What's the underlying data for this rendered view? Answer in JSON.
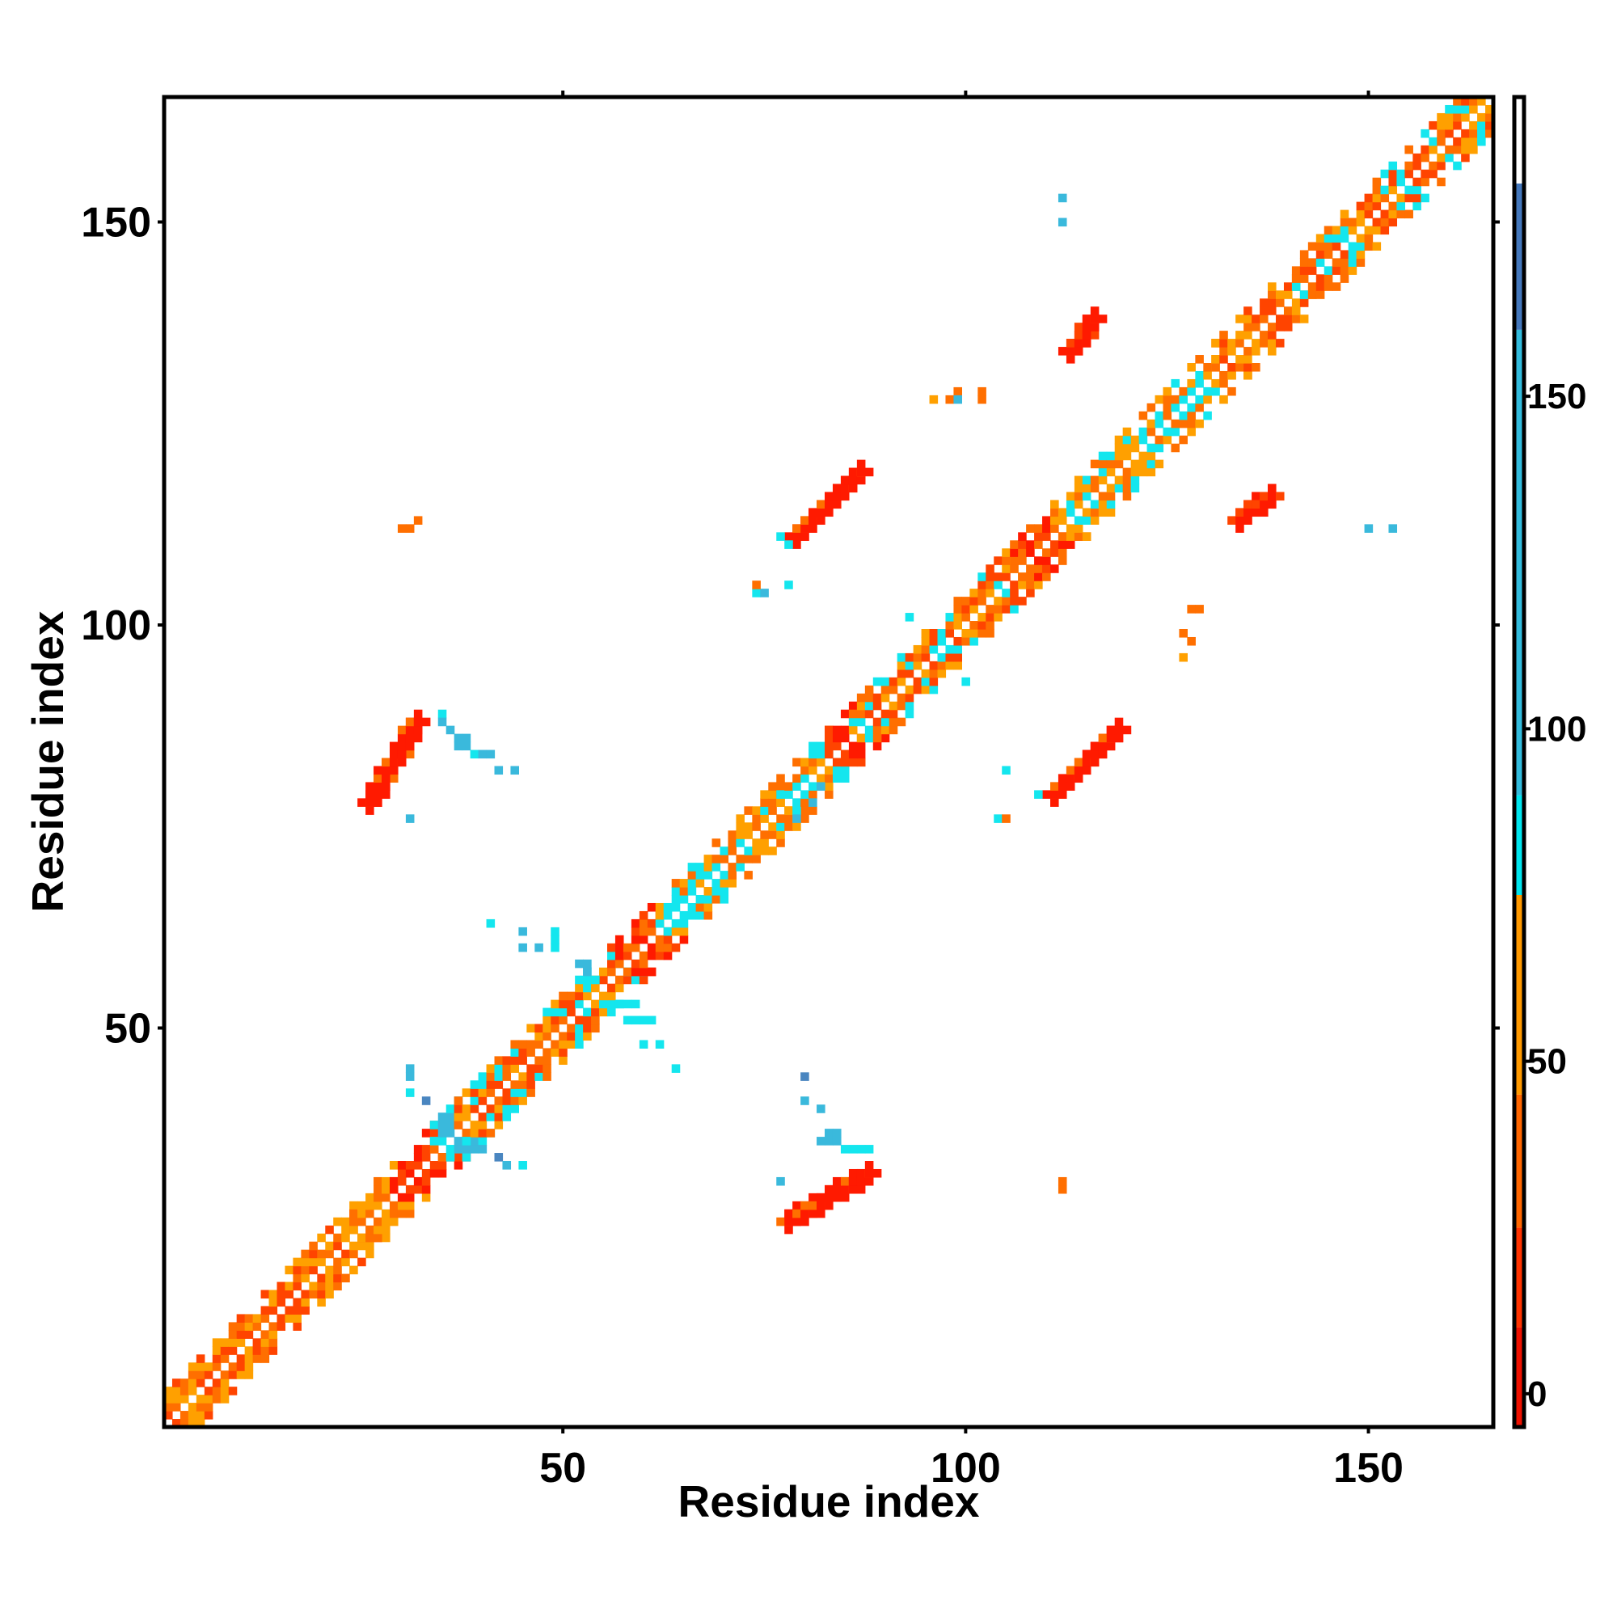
{
  "chart_data": {
    "type": "heatmap",
    "title": "",
    "xlabel": "Residue index",
    "ylabel": "Residue index",
    "xlim": [
      1,
      165
    ],
    "ylim": [
      1,
      165
    ],
    "x_ticks": [
      50,
      100,
      150
    ],
    "y_ticks": [
      50,
      100,
      150
    ],
    "colorbar": {
      "ticks": [
        0,
        50,
        100,
        150
      ],
      "range": [
        -5,
        195
      ],
      "bands": [
        {
          "from": -5,
          "to": 10,
          "color": "#ee1100"
        },
        {
          "from": 10,
          "to": 25,
          "color": "#ff3300"
        },
        {
          "from": 25,
          "to": 45,
          "color": "#ff6600"
        },
        {
          "from": 45,
          "to": 75,
          "color": "#ff9900"
        },
        {
          "from": 75,
          "to": 90,
          "color": "#00e5ee"
        },
        {
          "from": 90,
          "to": 160,
          "color": "#33bbdd"
        },
        {
          "from": 160,
          "to": 182,
          "color": "#4477bb"
        },
        {
          "from": 182,
          "to": 195,
          "color": "#ffffff"
        }
      ]
    },
    "palette": {
      "red": "#ff1a00",
      "red_orange": "#ff4400",
      "orange": "#ff6f00",
      "amber": "#ffa000",
      "cyan": "#14e6ee",
      "sky": "#3ab9dc",
      "steel": "#4a86c0"
    },
    "diagonal_segments": [
      {
        "from": 1,
        "to": 24,
        "mix": [
          "orange",
          "red_orange",
          "amber"
        ]
      },
      {
        "from": 24,
        "to": 29,
        "mix": [
          "amber",
          "orange"
        ]
      },
      {
        "from": 29,
        "to": 34,
        "mix": [
          "red",
          "red_orange"
        ]
      },
      {
        "from": 34,
        "to": 37,
        "mix": [
          "cyan",
          "sky",
          "orange"
        ]
      },
      {
        "from": 37,
        "to": 57,
        "mix": [
          "orange",
          "amber",
          "cyan",
          "red_orange"
        ]
      },
      {
        "from": 57,
        "to": 62,
        "mix": [
          "red_orange",
          "red",
          "orange"
        ]
      },
      {
        "from": 62,
        "to": 77,
        "mix": [
          "cyan",
          "amber",
          "orange"
        ]
      },
      {
        "from": 77,
        "to": 83,
        "mix": [
          "orange",
          "amber",
          "cyan"
        ]
      },
      {
        "from": 83,
        "to": 86,
        "mix": [
          "red",
          "red_orange"
        ]
      },
      {
        "from": 86,
        "to": 106,
        "mix": [
          "cyan",
          "orange",
          "amber",
          "red_orange"
        ]
      },
      {
        "from": 106,
        "to": 111,
        "mix": [
          "red_orange",
          "red",
          "orange"
        ]
      },
      {
        "from": 111,
        "to": 131,
        "mix": [
          "orange",
          "cyan",
          "amber"
        ]
      },
      {
        "from": 131,
        "to": 141,
        "mix": [
          "red_orange",
          "orange",
          "amber"
        ]
      },
      {
        "from": 141,
        "to": 165,
        "mix": [
          "cyan",
          "orange",
          "red_orange",
          "amber"
        ]
      }
    ],
    "contact_patches": [
      {
        "i": [
          26,
          32
        ],
        "j": [
          78,
          88
        ],
        "color": "red",
        "edge": "orange"
      },
      {
        "i": [
          78,
          88
        ],
        "j": [
          26,
          32
        ],
        "color": "red",
        "edge": "orange"
      },
      {
        "i": [
          79,
          87
        ],
        "j": [
          111,
          119
        ],
        "color": "red",
        "edge": "orange"
      },
      {
        "i": [
          111,
          119
        ],
        "j": [
          79,
          87
        ],
        "color": "red",
        "edge": "orange"
      },
      {
        "i": [
          134,
          138
        ],
        "j": [
          113,
          116
        ],
        "color": "red",
        "edge": "red_orange"
      },
      {
        "i": [
          113,
          116
        ],
        "j": [
          134,
          138
        ],
        "color": "red",
        "edge": "red_orange"
      }
    ],
    "scatter_points": [
      {
        "x": 30,
        "y": 112,
        "c": "orange"
      },
      {
        "x": 31,
        "y": 112,
        "c": "orange"
      },
      {
        "x": 32,
        "y": 113,
        "c": "orange"
      },
      {
        "x": 112,
        "y": 30,
        "c": "orange"
      },
      {
        "x": 112,
        "y": 31,
        "c": "orange"
      },
      {
        "x": 35,
        "y": 89,
        "c": "cyan"
      },
      {
        "x": 35,
        "y": 88,
        "c": "sky"
      },
      {
        "x": 36,
        "y": 87,
        "c": "sky"
      },
      {
        "x": 37,
        "y": 86,
        "c": "sky"
      },
      {
        "x": 38,
        "y": 86,
        "c": "sky"
      },
      {
        "x": 37,
        "y": 85,
        "c": "sky"
      },
      {
        "x": 38,
        "y": 85,
        "c": "sky"
      },
      {
        "x": 39,
        "y": 84,
        "c": "cyan"
      },
      {
        "x": 40,
        "y": 84,
        "c": "sky"
      },
      {
        "x": 41,
        "y": 84,
        "c": "sky"
      },
      {
        "x": 42,
        "y": 82,
        "c": "sky"
      },
      {
        "x": 44,
        "y": 82,
        "c": "sky"
      },
      {
        "x": 31,
        "y": 76,
        "c": "sky"
      },
      {
        "x": 82,
        "y": 36,
        "c": "sky"
      },
      {
        "x": 83,
        "y": 37,
        "c": "sky"
      },
      {
        "x": 84,
        "y": 37,
        "c": "sky"
      },
      {
        "x": 83,
        "y": 36,
        "c": "sky"
      },
      {
        "x": 84,
        "y": 36,
        "c": "sky"
      },
      {
        "x": 85,
        "y": 35,
        "c": "cyan"
      },
      {
        "x": 86,
        "y": 35,
        "c": "cyan"
      },
      {
        "x": 87,
        "y": 35,
        "c": "cyan"
      },
      {
        "x": 88,
        "y": 35,
        "c": "cyan"
      },
      {
        "x": 82,
        "y": 40,
        "c": "sky"
      },
      {
        "x": 80,
        "y": 41,
        "c": "sky"
      },
      {
        "x": 80,
        "y": 44,
        "c": "steel"
      },
      {
        "x": 77,
        "y": 31,
        "c": "sky"
      },
      {
        "x": 41,
        "y": 63,
        "c": "cyan"
      },
      {
        "x": 45,
        "y": 62,
        "c": "sky"
      },
      {
        "x": 49,
        "y": 62,
        "c": "cyan"
      },
      {
        "x": 49,
        "y": 61,
        "c": "cyan"
      },
      {
        "x": 45,
        "y": 60,
        "c": "sky"
      },
      {
        "x": 47,
        "y": 60,
        "c": "sky"
      },
      {
        "x": 49,
        "y": 60,
        "c": "cyan"
      },
      {
        "x": 52,
        "y": 58,
        "c": "sky"
      },
      {
        "x": 53,
        "y": 58,
        "c": "sky"
      },
      {
        "x": 53,
        "y": 57,
        "c": "sky"
      },
      {
        "x": 54,
        "y": 56,
        "c": "cyan"
      },
      {
        "x": 57,
        "y": 53,
        "c": "cyan"
      },
      {
        "x": 58,
        "y": 53,
        "c": "cyan"
      },
      {
        "x": 59,
        "y": 53,
        "c": "cyan"
      },
      {
        "x": 58,
        "y": 51,
        "c": "cyan"
      },
      {
        "x": 59,
        "y": 51,
        "c": "cyan"
      },
      {
        "x": 60,
        "y": 51,
        "c": "cyan"
      },
      {
        "x": 61,
        "y": 51,
        "c": "cyan"
      },
      {
        "x": 60,
        "y": 48,
        "c": "cyan"
      },
      {
        "x": 62,
        "y": 48,
        "c": "cyan"
      },
      {
        "x": 64,
        "y": 45,
        "c": "cyan"
      },
      {
        "x": 31,
        "y": 45,
        "c": "sky"
      },
      {
        "x": 31,
        "y": 44,
        "c": "sky"
      },
      {
        "x": 31,
        "y": 42,
        "c": "cyan"
      },
      {
        "x": 33,
        "y": 41,
        "c": "steel"
      },
      {
        "x": 38,
        "y": 36,
        "c": "cyan"
      },
      {
        "x": 40,
        "y": 35,
        "c": "sky"
      },
      {
        "x": 42,
        "y": 34,
        "c": "steel"
      },
      {
        "x": 43,
        "y": 33,
        "c": "sky"
      },
      {
        "x": 45,
        "y": 33,
        "c": "cyan"
      },
      {
        "x": 79,
        "y": 76,
        "c": "sky"
      },
      {
        "x": 81,
        "y": 78,
        "c": "sky"
      },
      {
        "x": 82,
        "y": 80,
        "c": "sky"
      },
      {
        "x": 104,
        "y": 76,
        "c": "cyan"
      },
      {
        "x": 105,
        "y": 76,
        "c": "orange"
      },
      {
        "x": 105,
        "y": 82,
        "c": "cyan"
      },
      {
        "x": 109,
        "y": 79,
        "c": "cyan"
      },
      {
        "x": 74,
        "y": 104,
        "c": "cyan"
      },
      {
        "x": 75,
        "y": 104,
        "c": "sky"
      },
      {
        "x": 74,
        "y": 105,
        "c": "orange"
      },
      {
        "x": 78,
        "y": 105,
        "c": "cyan"
      },
      {
        "x": 77,
        "y": 111,
        "c": "cyan"
      },
      {
        "x": 78,
        "y": 110,
        "c": "cyan"
      },
      {
        "x": 93,
        "y": 101,
        "c": "cyan"
      },
      {
        "x": 100,
        "y": 93,
        "c": "cyan"
      },
      {
        "x": 128,
        "y": 102,
        "c": "orange"
      },
      {
        "x": 129,
        "y": 102,
        "c": "orange"
      },
      {
        "x": 127,
        "y": 99,
        "c": "orange"
      },
      {
        "x": 128,
        "y": 98,
        "c": "orange"
      },
      {
        "x": 127,
        "y": 96,
        "c": "amber"
      },
      {
        "x": 96,
        "y": 128,
        "c": "amber"
      },
      {
        "x": 98,
        "y": 128,
        "c": "orange"
      },
      {
        "x": 99,
        "y": 129,
        "c": "orange"
      },
      {
        "x": 99,
        "y": 128,
        "c": "sky"
      },
      {
        "x": 102,
        "y": 128,
        "c": "orange"
      },
      {
        "x": 102,
        "y": 129,
        "c": "orange"
      },
      {
        "x": 112,
        "y": 153,
        "c": "sky"
      },
      {
        "x": 112,
        "y": 150,
        "c": "sky"
      },
      {
        "x": 150,
        "y": 112,
        "c": "sky"
      },
      {
        "x": 153,
        "y": 112,
        "c": "sky"
      }
    ]
  }
}
